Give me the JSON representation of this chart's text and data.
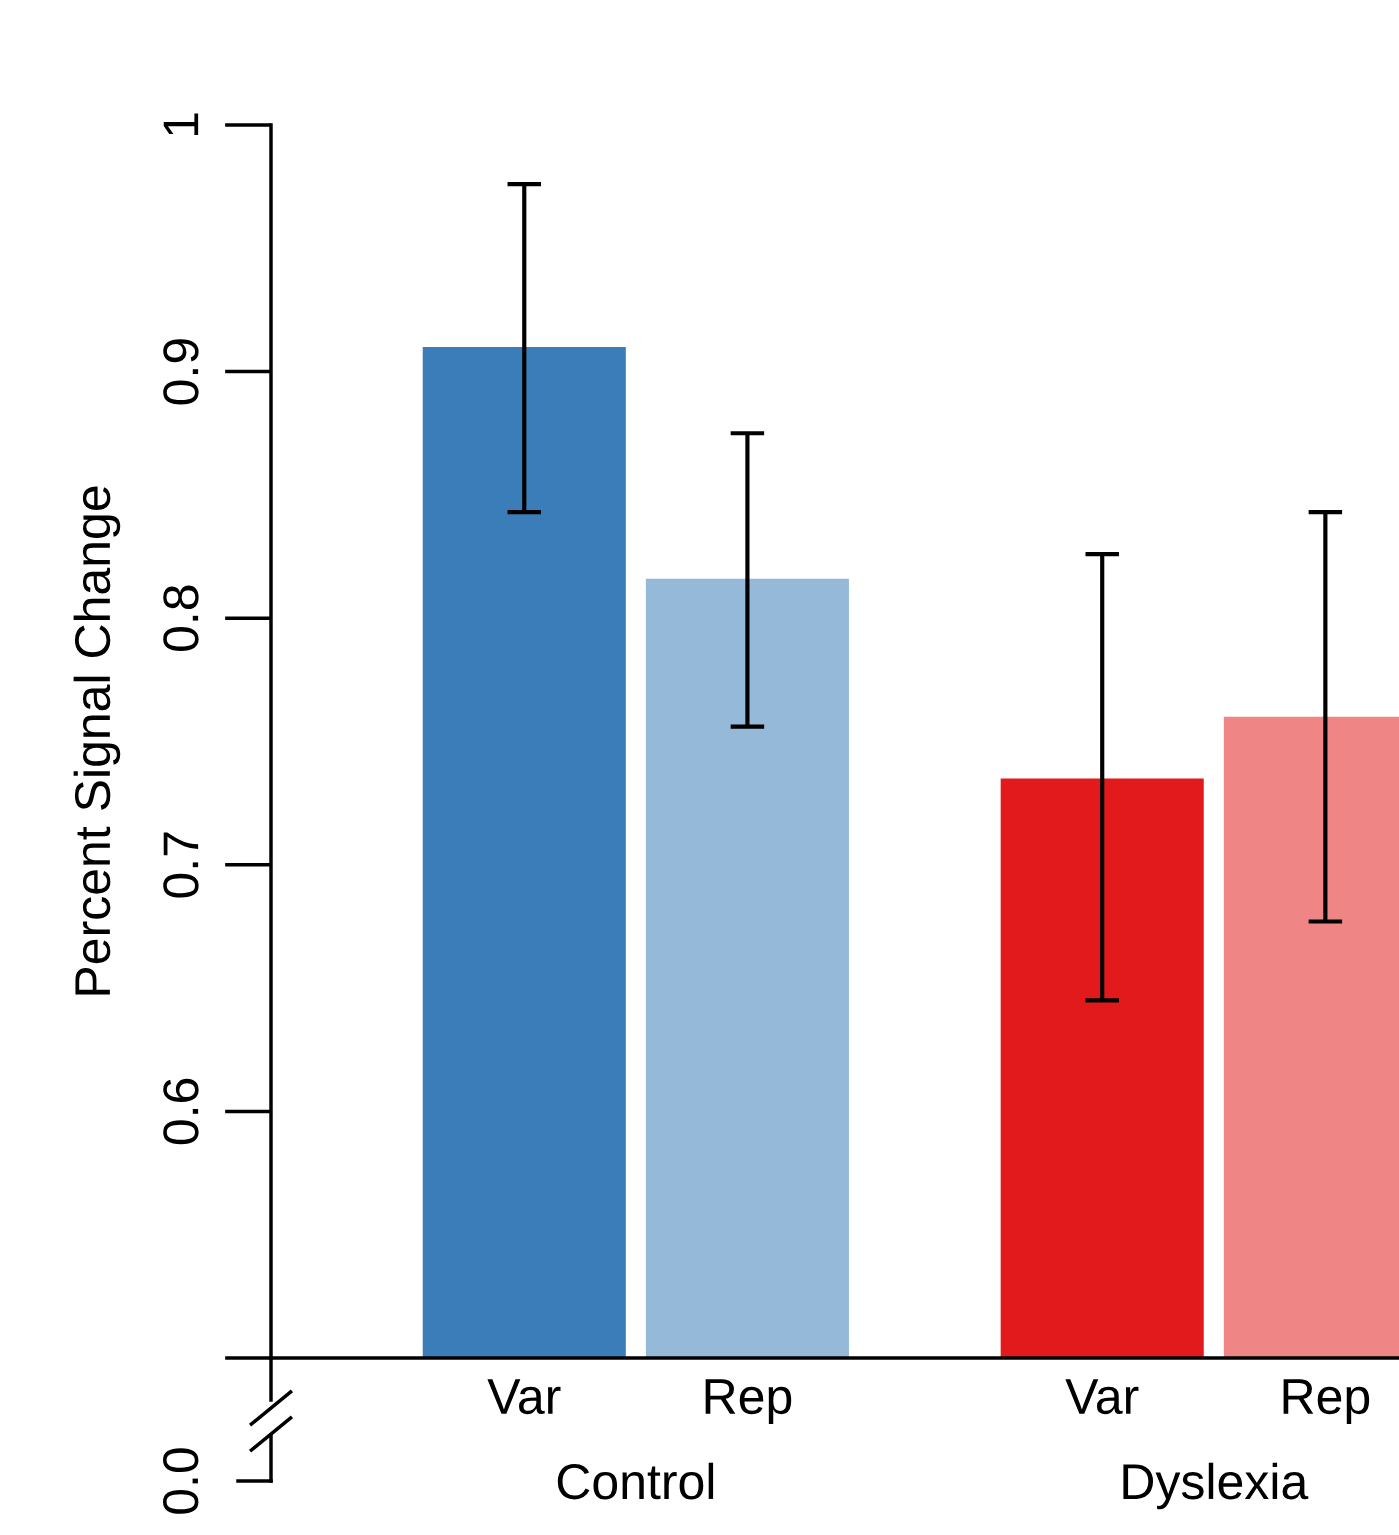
{
  "chart_data": {
    "type": "bar",
    "ylabel": "Percent Signal Change",
    "categories": [
      "Var",
      "Rep",
      "Var",
      "Rep"
    ],
    "values": [
      0.91,
      0.816,
      0.735,
      0.76
    ],
    "colors": [
      "#3a7db8",
      "#94b9d9",
      "#e31a1c",
      "#f08585"
    ],
    "errors": [
      [
        0.843,
        0.976
      ],
      [
        0.756,
        0.875
      ],
      [
        0.645,
        0.826
      ],
      [
        0.677,
        0.843
      ]
    ],
    "ylim": [
      0.5,
      1.0
    ],
    "yticks": [
      {
        "value": 0.5,
        "label": null
      },
      0.6,
      0.7,
      0.8,
      0.9,
      {
        "value": 1.0,
        "label": "1"
      }
    ],
    "annotations": [
      "Control",
      "Dyslexia",
      "0.0"
    ],
    "grid": false,
    "legend": false
  }
}
